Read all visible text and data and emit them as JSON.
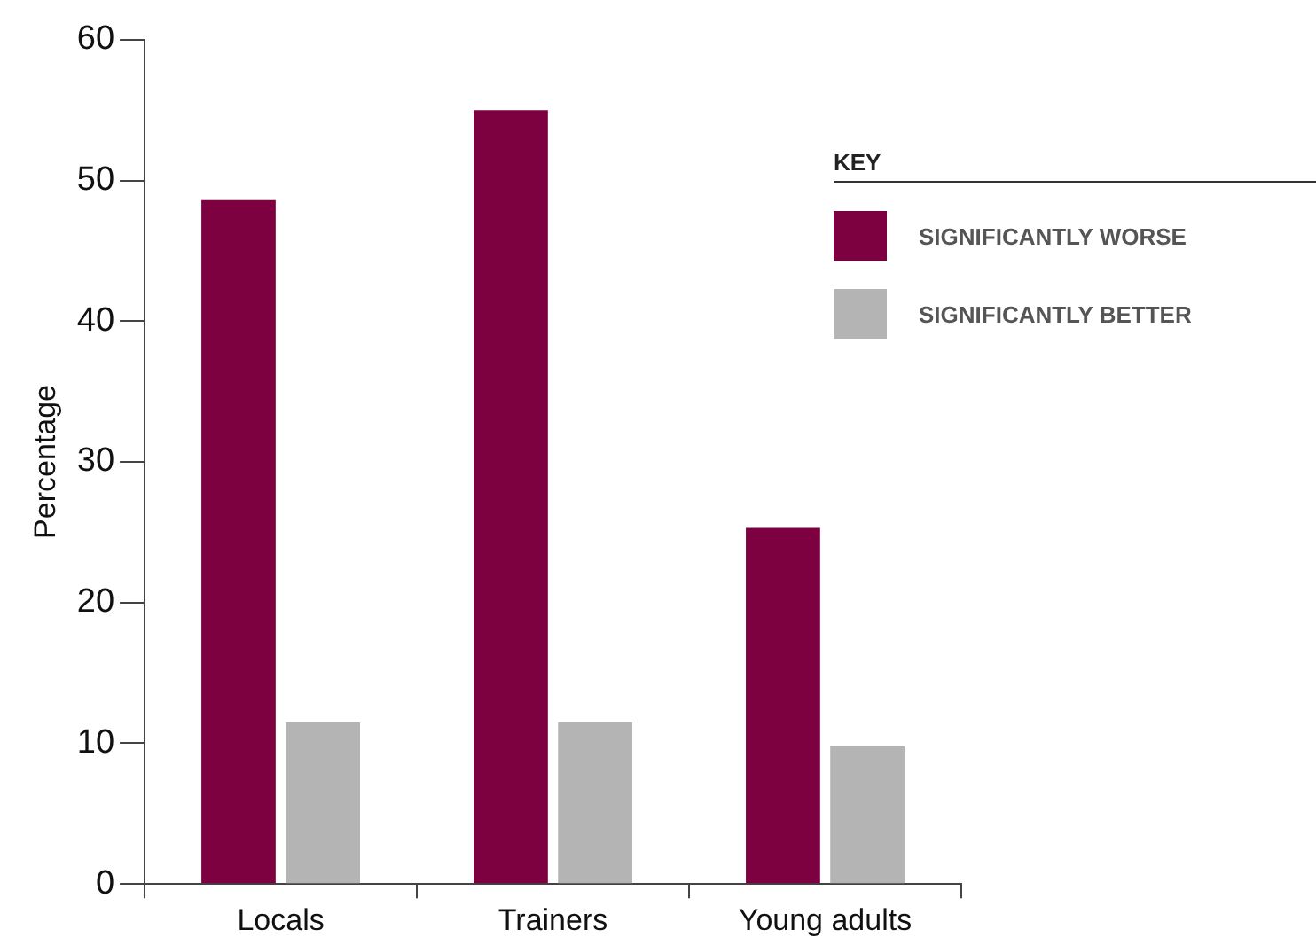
{
  "chart_data": {
    "type": "bar",
    "ylabel": "Percentage",
    "legend_title": "KEY",
    "legend": "top right",
    "categories": [
      "Locals",
      "Trainers",
      "Young adults"
    ],
    "series": [
      {
        "name": "SIGNIFICANTLY WORSE",
        "color": "#7d0040",
        "values": [
          48.6,
          55,
          25.3
        ]
      },
      {
        "name": "SIGNIFICANTLY BETTER",
        "color": "#b4b4b4",
        "values": [
          11.5,
          11.5,
          9.8
        ]
      }
    ],
    "ylim": [
      0,
      60
    ],
    "yticks": [
      0,
      10,
      20,
      30,
      40,
      50,
      60
    ],
    "grid": false
  }
}
